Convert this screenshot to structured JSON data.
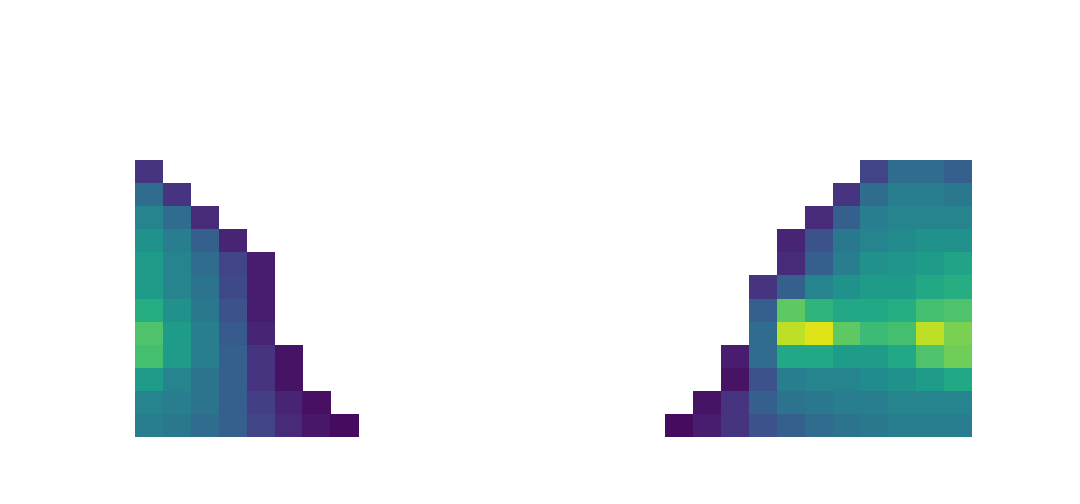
{
  "chart_data": {
    "type": "heatmap",
    "tick_labels": false,
    "zlim": [
      0,
      1
    ],
    "cells": [
      [
        0.15,
        null,
        null,
        null,
        null,
        null,
        null,
        null,
        null,
        null,
        null,
        null,
        null,
        null,
        null,
        null,
        null,
        null,
        null,
        null,
        null,
        null,
        null,
        null,
        null,
        null,
        0.2,
        0.35,
        0.35,
        0.3
      ],
      [
        0.35,
        0.15,
        null,
        null,
        null,
        null,
        null,
        null,
        null,
        null,
        null,
        null,
        null,
        null,
        null,
        null,
        null,
        null,
        null,
        null,
        null,
        null,
        null,
        null,
        null,
        0.15,
        0.35,
        0.42,
        0.42,
        0.4
      ],
      [
        0.45,
        0.35,
        0.12,
        null,
        null,
        null,
        null,
        null,
        null,
        null,
        null,
        null,
        null,
        null,
        null,
        null,
        null,
        null,
        null,
        null,
        null,
        null,
        null,
        null,
        0.12,
        0.3,
        0.42,
        0.45,
        0.45,
        0.45
      ],
      [
        0.5,
        0.42,
        0.3,
        0.1,
        null,
        null,
        null,
        null,
        null,
        null,
        null,
        null,
        null,
        null,
        null,
        null,
        null,
        null,
        null,
        null,
        null,
        null,
        null,
        0.1,
        0.25,
        0.4,
        0.45,
        0.48,
        0.5,
        0.5
      ],
      [
        0.55,
        0.45,
        0.35,
        0.2,
        0.08,
        null,
        null,
        null,
        null,
        null,
        null,
        null,
        null,
        null,
        null,
        null,
        null,
        null,
        null,
        null,
        null,
        null,
        null,
        0.12,
        0.3,
        0.42,
        0.5,
        0.52,
        0.55,
        0.58
      ],
      [
        0.55,
        0.45,
        0.38,
        0.22,
        0.08,
        null,
        null,
        null,
        null,
        null,
        null,
        null,
        null,
        null,
        null,
        null,
        null,
        null,
        null,
        null,
        null,
        null,
        0.15,
        0.3,
        0.45,
        0.5,
        0.55,
        0.55,
        0.6,
        0.62
      ],
      [
        0.62,
        0.5,
        0.4,
        0.25,
        0.08,
        null,
        null,
        null,
        null,
        null,
        null,
        null,
        null,
        null,
        null,
        null,
        null,
        null,
        null,
        null,
        null,
        null,
        0.3,
        0.75,
        0.65,
        0.6,
        0.6,
        0.62,
        0.7,
        0.72
      ],
      [
        0.72,
        0.55,
        0.42,
        0.28,
        0.1,
        null,
        null,
        null,
        null,
        null,
        null,
        null,
        null,
        null,
        null,
        null,
        null,
        null,
        null,
        null,
        null,
        null,
        0.35,
        0.9,
        0.95,
        0.75,
        0.68,
        0.7,
        0.9,
        0.8
      ],
      [
        0.7,
        0.55,
        0.42,
        0.3,
        0.15,
        0.05,
        null,
        null,
        null,
        null,
        null,
        null,
        null,
        null,
        null,
        null,
        null,
        null,
        null,
        null,
        null,
        0.08,
        0.35,
        0.6,
        0.6,
        0.55,
        0.55,
        0.6,
        0.72,
        0.78
      ],
      [
        0.55,
        0.45,
        0.38,
        0.3,
        0.15,
        0.05,
        null,
        null,
        null,
        null,
        null,
        null,
        null,
        null,
        null,
        null,
        null,
        null,
        null,
        null,
        null,
        0.05,
        0.25,
        0.42,
        0.45,
        0.45,
        0.48,
        0.5,
        0.55,
        0.6
      ],
      [
        0.45,
        0.42,
        0.38,
        0.3,
        0.18,
        0.1,
        0.04,
        null,
        null,
        null,
        null,
        null,
        null,
        null,
        null,
        null,
        null,
        null,
        null,
        null,
        0.05,
        0.15,
        0.3,
        0.38,
        0.4,
        0.42,
        0.42,
        0.45,
        0.45,
        0.45
      ],
      [
        0.42,
        0.4,
        0.35,
        0.3,
        0.2,
        0.12,
        0.06,
        0.03,
        null,
        null,
        null,
        null,
        null,
        null,
        null,
        null,
        null,
        null,
        null,
        0.03,
        0.08,
        0.15,
        0.25,
        0.3,
        0.35,
        0.38,
        0.4,
        0.42,
        0.42,
        0.42
      ]
    ]
  }
}
